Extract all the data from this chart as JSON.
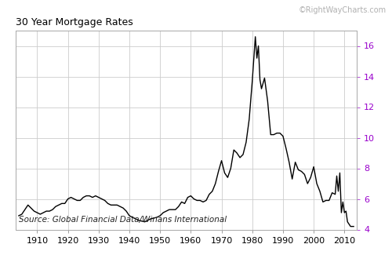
{
  "title": "30 Year Mortgage Rates",
  "watermark": "©RightWayCharts.com",
  "source_text": "Source: Global Financial Data/Winans International",
  "ylim": [
    4,
    17
  ],
  "yticks": [
    4,
    6,
    8,
    10,
    12,
    14,
    16
  ],
  "xlim": [
    1903,
    2014
  ],
  "xticks": [
    1910,
    1920,
    1930,
    1940,
    1950,
    1960,
    1970,
    1980,
    1990,
    2000,
    2010
  ],
  "line_color": "#000000",
  "background_color": "#ffffff",
  "grid_color": "#cccccc",
  "title_color": "#000000",
  "watermark_color": "#b0b0b0",
  "ytick_color": "#9900cc",
  "data": [
    [
      1904,
      4.9
    ],
    [
      1905,
      5.0
    ],
    [
      1906,
      5.3
    ],
    [
      1907,
      5.6
    ],
    [
      1908,
      5.4
    ],
    [
      1909,
      5.2
    ],
    [
      1910,
      5.1
    ],
    [
      1911,
      5.0
    ],
    [
      1912,
      5.1
    ],
    [
      1913,
      5.2
    ],
    [
      1914,
      5.2
    ],
    [
      1915,
      5.3
    ],
    [
      1916,
      5.5
    ],
    [
      1917,
      5.6
    ],
    [
      1918,
      5.7
    ],
    [
      1919,
      5.7
    ],
    [
      1920,
      6.0
    ],
    [
      1921,
      6.1
    ],
    [
      1922,
      6.0
    ],
    [
      1923,
      5.9
    ],
    [
      1924,
      5.9
    ],
    [
      1925,
      6.1
    ],
    [
      1926,
      6.2
    ],
    [
      1927,
      6.2
    ],
    [
      1928,
      6.1
    ],
    [
      1929,
      6.2
    ],
    [
      1930,
      6.1
    ],
    [
      1931,
      6.0
    ],
    [
      1932,
      5.9
    ],
    [
      1933,
      5.7
    ],
    [
      1934,
      5.6
    ],
    [
      1935,
      5.6
    ],
    [
      1936,
      5.6
    ],
    [
      1937,
      5.5
    ],
    [
      1938,
      5.4
    ],
    [
      1939,
      5.2
    ],
    [
      1940,
      4.9
    ],
    [
      1941,
      4.8
    ],
    [
      1942,
      4.7
    ],
    [
      1943,
      4.6
    ],
    [
      1944,
      4.55
    ],
    [
      1945,
      4.5
    ],
    [
      1946,
      4.6
    ],
    [
      1947,
      4.7
    ],
    [
      1948,
      4.75
    ],
    [
      1949,
      4.8
    ],
    [
      1950,
      4.9
    ],
    [
      1951,
      5.1
    ],
    [
      1952,
      5.2
    ],
    [
      1953,
      5.3
    ],
    [
      1954,
      5.3
    ],
    [
      1955,
      5.3
    ],
    [
      1956,
      5.5
    ],
    [
      1957,
      5.8
    ],
    [
      1958,
      5.7
    ],
    [
      1959,
      6.1
    ],
    [
      1960,
      6.2
    ],
    [
      1961,
      6.0
    ],
    [
      1962,
      5.9
    ],
    [
      1963,
      5.9
    ],
    [
      1964,
      5.8
    ],
    [
      1965,
      5.9
    ],
    [
      1966,
      6.3
    ],
    [
      1967,
      6.5
    ],
    [
      1968,
      7.0
    ],
    [
      1969,
      7.8
    ],
    [
      1970,
      8.5
    ],
    [
      1971,
      7.7
    ],
    [
      1972,
      7.4
    ],
    [
      1973,
      8.0
    ],
    [
      1974,
      9.2
    ],
    [
      1975,
      9.0
    ],
    [
      1976,
      8.7
    ],
    [
      1977,
      8.9
    ],
    [
      1978,
      9.7
    ],
    [
      1979,
      11.2
    ],
    [
      1980,
      13.7
    ],
    [
      1981,
      16.6
    ],
    [
      1981.5,
      15.2
    ],
    [
      1982,
      16.0
    ],
    [
      1982.5,
      13.8
    ],
    [
      1983,
      13.2
    ],
    [
      1984,
      13.9
    ],
    [
      1985,
      12.4
    ],
    [
      1986,
      10.2
    ],
    [
      1987,
      10.2
    ],
    [
      1988,
      10.3
    ],
    [
      1989,
      10.3
    ],
    [
      1990,
      10.1
    ],
    [
      1991,
      9.3
    ],
    [
      1992,
      8.4
    ],
    [
      1993,
      7.3
    ],
    [
      1994,
      8.4
    ],
    [
      1995,
      7.9
    ],
    [
      1996,
      7.8
    ],
    [
      1997,
      7.6
    ],
    [
      1998,
      7.0
    ],
    [
      1999,
      7.4
    ],
    [
      2000,
      8.1
    ],
    [
      2001,
      7.0
    ],
    [
      2002,
      6.5
    ],
    [
      2003,
      5.8
    ],
    [
      2004,
      5.9
    ],
    [
      2005,
      5.9
    ],
    [
      2006,
      6.4
    ],
    [
      2007,
      6.3
    ],
    [
      2007.5,
      7.5
    ],
    [
      2008,
      6.5
    ],
    [
      2008.5,
      7.7
    ],
    [
      2009,
      5.1
    ],
    [
      2009.5,
      5.8
    ],
    [
      2010,
      5.1
    ],
    [
      2010.5,
      5.2
    ],
    [
      2011,
      4.5
    ],
    [
      2012,
      4.2
    ],
    [
      2013,
      4.2
    ]
  ]
}
